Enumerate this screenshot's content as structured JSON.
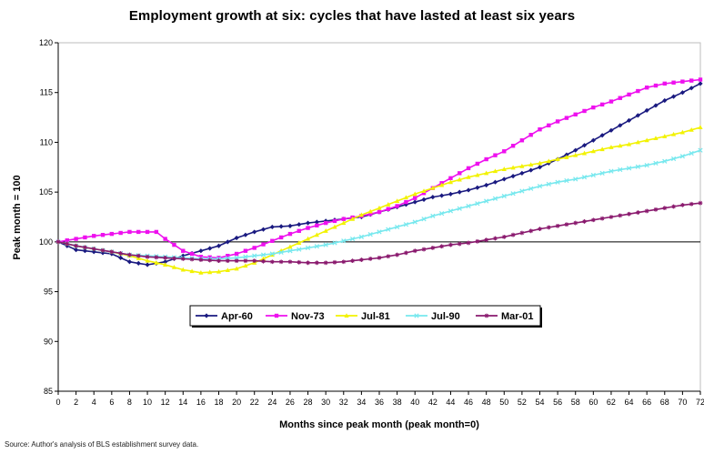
{
  "chart_data": {
    "type": "line",
    "title": "Employment growth at six: cycles that have lasted at least six years",
    "xlabel": "Months since peak month (peak month=0)",
    "ylabel": "Peak month = 100",
    "source": "Source: Author's analysis of BLS establishment survey data.",
    "xlim": [
      0,
      72
    ],
    "ylim": [
      85,
      120
    ],
    "yticks": [
      85,
      90,
      95,
      100,
      105,
      110,
      115,
      120
    ],
    "xticks": [
      0,
      2,
      4,
      6,
      8,
      10,
      12,
      14,
      16,
      18,
      20,
      22,
      24,
      26,
      28,
      30,
      32,
      34,
      36,
      38,
      40,
      42,
      44,
      46,
      48,
      50,
      52,
      54,
      56,
      58,
      60,
      62,
      64,
      66,
      68,
      70,
      72
    ],
    "reference_line": 100,
    "grid": false,
    "legend_position": "center-left",
    "series": [
      {
        "name": "Apr-60",
        "color": "#1a1a80",
        "marker": "diamond",
        "anchors": [
          [
            0,
            100
          ],
          [
            2,
            99.2
          ],
          [
            6,
            98.8
          ],
          [
            8,
            98.0
          ],
          [
            10,
            97.7
          ],
          [
            12,
            98.0
          ],
          [
            14,
            98.6
          ],
          [
            16,
            99.1
          ],
          [
            18,
            99.6
          ],
          [
            20,
            100.4
          ],
          [
            22,
            101.0
          ],
          [
            24,
            101.5
          ],
          [
            26,
            101.6
          ],
          [
            28,
            101.9
          ],
          [
            30,
            102.1
          ],
          [
            32,
            102.3
          ],
          [
            34,
            102.5
          ],
          [
            36,
            103.0
          ],
          [
            38,
            103.5
          ],
          [
            40,
            104.0
          ],
          [
            42,
            104.5
          ],
          [
            44,
            104.8
          ],
          [
            46,
            105.2
          ],
          [
            48,
            105.7
          ],
          [
            50,
            106.3
          ],
          [
            52,
            106.9
          ],
          [
            54,
            107.5
          ],
          [
            56,
            108.3
          ],
          [
            58,
            109.2
          ],
          [
            60,
            110.2
          ],
          [
            62,
            111.2
          ],
          [
            64,
            112.2
          ],
          [
            66,
            113.2
          ],
          [
            68,
            114.2
          ],
          [
            70,
            115.0
          ],
          [
            72,
            115.9
          ]
        ]
      },
      {
        "name": "Nov-73",
        "color": "#ee11ee",
        "marker": "square",
        "anchors": [
          [
            0,
            100
          ],
          [
            2,
            100.3
          ],
          [
            4,
            100.6
          ],
          [
            6,
            100.8
          ],
          [
            8,
            101.0
          ],
          [
            10,
            101.0
          ],
          [
            11,
            101.0
          ],
          [
            12,
            100.3
          ],
          [
            14,
            99.1
          ],
          [
            16,
            98.5
          ],
          [
            18,
            98.4
          ],
          [
            20,
            98.8
          ],
          [
            22,
            99.4
          ],
          [
            24,
            100.1
          ],
          [
            26,
            100.8
          ],
          [
            28,
            101.4
          ],
          [
            30,
            101.9
          ],
          [
            32,
            102.3
          ],
          [
            34,
            102.6
          ],
          [
            36,
            103.0
          ],
          [
            38,
            103.6
          ],
          [
            40,
            104.4
          ],
          [
            42,
            105.4
          ],
          [
            44,
            106.4
          ],
          [
            46,
            107.4
          ],
          [
            48,
            108.3
          ],
          [
            50,
            109.1
          ],
          [
            52,
            110.2
          ],
          [
            54,
            111.3
          ],
          [
            56,
            112.1
          ],
          [
            58,
            112.8
          ],
          [
            60,
            113.5
          ],
          [
            62,
            114.1
          ],
          [
            64,
            114.8
          ],
          [
            66,
            115.5
          ],
          [
            68,
            115.9
          ],
          [
            70,
            116.1
          ],
          [
            72,
            116.3
          ]
        ]
      },
      {
        "name": "Jul-81",
        "color": "#f2f200",
        "marker": "triangle",
        "anchors": [
          [
            0,
            100
          ],
          [
            2,
            99.6
          ],
          [
            4,
            99.3
          ],
          [
            6,
            99.0
          ],
          [
            8,
            98.6
          ],
          [
            10,
            98.1
          ],
          [
            12,
            97.7
          ],
          [
            14,
            97.2
          ],
          [
            16,
            96.9
          ],
          [
            18,
            97.0
          ],
          [
            20,
            97.3
          ],
          [
            22,
            97.9
          ],
          [
            24,
            98.7
          ],
          [
            26,
            99.5
          ],
          [
            28,
            100.3
          ],
          [
            30,
            101.1
          ],
          [
            32,
            101.9
          ],
          [
            34,
            102.7
          ],
          [
            36,
            103.4
          ],
          [
            38,
            104.1
          ],
          [
            40,
            104.8
          ],
          [
            42,
            105.4
          ],
          [
            44,
            106.0
          ],
          [
            46,
            106.5
          ],
          [
            48,
            106.9
          ],
          [
            50,
            107.3
          ],
          [
            52,
            107.6
          ],
          [
            54,
            107.9
          ],
          [
            56,
            108.3
          ],
          [
            58,
            108.7
          ],
          [
            60,
            109.1
          ],
          [
            62,
            109.5
          ],
          [
            64,
            109.8
          ],
          [
            66,
            110.2
          ],
          [
            68,
            110.6
          ],
          [
            70,
            111.0
          ],
          [
            72,
            111.5
          ]
        ]
      },
      {
        "name": "Jul-90",
        "color": "#77e8ee",
        "marker": "x",
        "anchors": [
          [
            0,
            100
          ],
          [
            2,
            99.6
          ],
          [
            4,
            99.3
          ],
          [
            6,
            99.0
          ],
          [
            8,
            98.7
          ],
          [
            10,
            98.6
          ],
          [
            12,
            98.5
          ],
          [
            14,
            98.4
          ],
          [
            16,
            98.3
          ],
          [
            18,
            98.3
          ],
          [
            20,
            98.4
          ],
          [
            22,
            98.6
          ],
          [
            24,
            98.8
          ],
          [
            26,
            99.1
          ],
          [
            28,
            99.4
          ],
          [
            30,
            99.7
          ],
          [
            32,
            100.1
          ],
          [
            34,
            100.5
          ],
          [
            36,
            101.0
          ],
          [
            38,
            101.5
          ],
          [
            40,
            102.0
          ],
          [
            42,
            102.6
          ],
          [
            44,
            103.1
          ],
          [
            46,
            103.6
          ],
          [
            48,
            104.1
          ],
          [
            50,
            104.6
          ],
          [
            52,
            105.1
          ],
          [
            54,
            105.6
          ],
          [
            56,
            106.0
          ],
          [
            58,
            106.3
          ],
          [
            60,
            106.7
          ],
          [
            62,
            107.1
          ],
          [
            64,
            107.4
          ],
          [
            66,
            107.7
          ],
          [
            68,
            108.1
          ],
          [
            70,
            108.6
          ],
          [
            72,
            109.2
          ]
        ]
      },
      {
        "name": "Mar-01",
        "color": "#8a1a6e",
        "marker": "star",
        "anchors": [
          [
            0,
            100
          ],
          [
            2,
            99.6
          ],
          [
            4,
            99.3
          ],
          [
            6,
            99.0
          ],
          [
            8,
            98.7
          ],
          [
            10,
            98.5
          ],
          [
            12,
            98.4
          ],
          [
            14,
            98.3
          ],
          [
            16,
            98.2
          ],
          [
            18,
            98.1
          ],
          [
            20,
            98.1
          ],
          [
            22,
            98.1
          ],
          [
            24,
            98.0
          ],
          [
            26,
            98.0
          ],
          [
            28,
            97.9
          ],
          [
            30,
            97.9
          ],
          [
            32,
            98.0
          ],
          [
            34,
            98.2
          ],
          [
            36,
            98.4
          ],
          [
            38,
            98.7
          ],
          [
            40,
            99.1
          ],
          [
            42,
            99.4
          ],
          [
            44,
            99.7
          ],
          [
            46,
            99.9
          ],
          [
            48,
            100.2
          ],
          [
            50,
            100.5
          ],
          [
            52,
            100.9
          ],
          [
            54,
            101.3
          ],
          [
            56,
            101.6
          ],
          [
            58,
            101.9
          ],
          [
            60,
            102.2
          ],
          [
            62,
            102.5
          ],
          [
            64,
            102.8
          ],
          [
            66,
            103.1
          ],
          [
            68,
            103.4
          ],
          [
            70,
            103.7
          ],
          [
            72,
            103.9
          ]
        ]
      }
    ]
  }
}
